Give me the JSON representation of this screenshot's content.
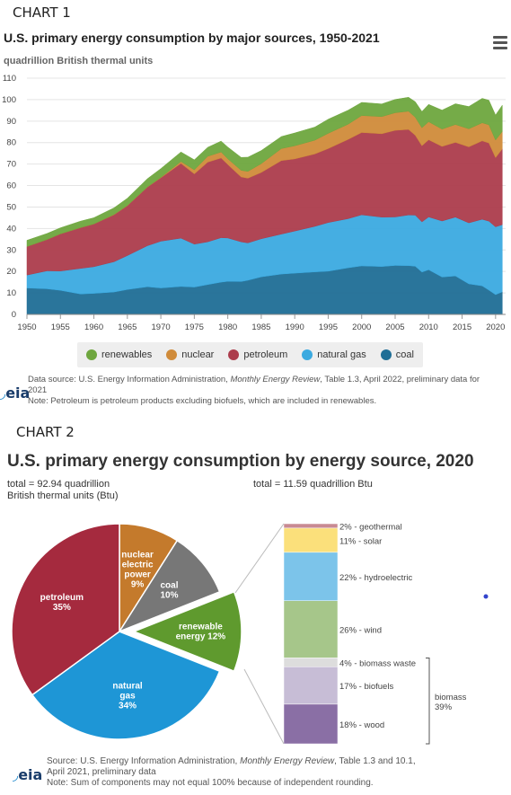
{
  "chart1": {
    "label": "CHART 1",
    "title": "U.S. primary energy consumption by major sources, 1950-2021",
    "subtitle": "quadrillion British thermal units",
    "menu_icon": "hamburger-menu-icon",
    "source_prefix": "Data source: U.S. Energy Information Administration, ",
    "source_pub": "Monthly Energy Review",
    "source_suffix": ", Table 1.3, April 2022, preliminary data for",
    "source_year": "2021",
    "note": "Note: Petroleum is petroleum products excluding biofuels, which are included in renewables.",
    "logo_text": "eia",
    "chart_data": {
      "type": "area",
      "stacked": true,
      "title": "U.S. primary energy consumption by major sources, 1950-2021",
      "ylabel": "quadrillion British thermal units",
      "ylim": [
        0,
        110
      ],
      "yticks": [
        0,
        10,
        20,
        30,
        40,
        50,
        60,
        70,
        80,
        90,
        100,
        110
      ],
      "xticks": [
        1950,
        1955,
        1960,
        1965,
        1970,
        1975,
        1980,
        1985,
        1990,
        1995,
        2000,
        2005,
        2010,
        2015,
        2020
      ],
      "grid": true,
      "legend_position": "bottom",
      "x": [
        1950,
        1953,
        1955,
        1958,
        1960,
        1963,
        1965,
        1968,
        1970,
        1973,
        1975,
        1977,
        1979,
        1980,
        1982,
        1983,
        1985,
        1988,
        1990,
        1993,
        1995,
        1998,
        2000,
        2003,
        2005,
        2007,
        2008,
        2009,
        2010,
        2012,
        2014,
        2016,
        2018,
        2019,
        2020,
        2021
      ],
      "series": [
        {
          "name": "coal",
          "color": "#1f6e96",
          "values": [
            12.3,
            11.9,
            11.2,
            9.5,
            9.8,
            10.4,
            11.6,
            12.9,
            12.3,
            13.0,
            12.7,
            13.9,
            15.0,
            15.4,
            15.3,
            15.9,
            17.5,
            18.8,
            19.2,
            19.8,
            20.1,
            21.7,
            22.6,
            22.3,
            22.8,
            22.7,
            22.4,
            19.7,
            20.8,
            17.4,
            17.9,
            14.2,
            13.3,
            11.3,
            9.2,
            10.5
          ]
        },
        {
          "name": "natural gas",
          "color": "#3baae0",
          "values": [
            6.0,
            8.4,
            9.0,
            11.9,
            12.4,
            14.1,
            15.8,
            19.1,
            21.8,
            22.5,
            20.0,
            19.9,
            20.7,
            20.2,
            18.5,
            17.4,
            17.7,
            18.6,
            19.6,
            21.2,
            22.7,
            22.9,
            23.8,
            23.0,
            22.6,
            23.6,
            23.8,
            23.4,
            24.6,
            26.1,
            27.4,
            28.4,
            31.0,
            32.1,
            31.6,
            31.3
          ]
        },
        {
          "name": "petroleum",
          "color": "#ac3c4c",
          "values": [
            13.3,
            14.6,
            17.3,
            19.0,
            19.9,
            21.9,
            23.2,
            27.3,
            29.5,
            34.8,
            32.7,
            37.1,
            37.1,
            34.2,
            30.2,
            30.1,
            30.9,
            34.2,
            33.6,
            33.7,
            34.4,
            36.9,
            38.3,
            38.8,
            40.3,
            39.8,
            37.2,
            35.4,
            35.9,
            34.7,
            34.8,
            35.4,
            36.5,
            36.4,
            32.2,
            35.3
          ]
        },
        {
          "name": "nuclear",
          "color": "#d08b3a",
          "values": [
            0,
            0,
            0,
            0,
            0,
            0.1,
            0.1,
            0.1,
            0.2,
            0.9,
            1.9,
            2.7,
            2.8,
            2.7,
            3.1,
            3.2,
            4.1,
            5.6,
            6.1,
            6.4,
            7.1,
            7.1,
            7.9,
            8.0,
            8.2,
            8.5,
            8.4,
            8.4,
            8.4,
            8.1,
            8.3,
            8.4,
            8.4,
            8.5,
            8.2,
            8.1
          ]
        },
        {
          "name": "renewables",
          "color": "#6ea63e",
          "values": [
            2.9,
            2.8,
            2.8,
            3.0,
            2.9,
            3.1,
            3.4,
            3.8,
            4.1,
            4.4,
            4.7,
            4.2,
            5.1,
            5.4,
            6.0,
            6.6,
            6.1,
            5.6,
            6.0,
            6.1,
            6.6,
            6.5,
            6.1,
            5.9,
            6.2,
            6.5,
            7.2,
            7.6,
            8.1,
            8.8,
            9.7,
            10.4,
            11.4,
            11.4,
            11.6,
            12.2
          ]
        }
      ]
    }
  },
  "chart2": {
    "label": "CHART 2",
    "title": "U.S. primary energy consumption by energy source, 2020",
    "total_left_line1": "total = 92.94 quadrillion",
    "total_left_line2": "British thermal units (Btu)",
    "total_right": "total = 11.59 quadrillion Btu",
    "source_prefix": "Source: U.S. Energy Information Administration, ",
    "source_pub": "Monthly Energy Review",
    "source_suffix": ", Table 1.3 and 10.1,",
    "source_line2": "April 2021, preliminary data",
    "note": "Note: Sum of components may not equal 100% because of independent rounding.",
    "logo_text": "eia",
    "biomass_label": "biomass",
    "biomass_pct": "39%",
    "chart_data": [
      {
        "type": "pie",
        "title": "U.S. primary energy consumption by energy source, 2020",
        "categories": [
          "petroleum",
          "nuclear electric power",
          "coal",
          "renewable energy",
          "natural gas"
        ],
        "values": [
          35,
          9,
          10,
          12,
          34
        ],
        "labels": [
          [
            "petroleum",
            "35%"
          ],
          [
            "nuclear",
            "electric",
            "power",
            "9%"
          ],
          [
            "coal",
            "10%"
          ],
          [
            "renewable",
            "energy 12%"
          ],
          [
            "natural",
            "gas",
            "34%"
          ]
        ],
        "colors": [
          "#a52a3e",
          "#c47a2c",
          "#777777",
          "#5f9a2e",
          "#1e96d6"
        ],
        "exploded": "renewable energy"
      },
      {
        "type": "bar",
        "stacked": true,
        "title": "renewable energy",
        "categories": [
          "geothermal",
          "solar",
          "hydroelectric",
          "wind",
          "biomass waste",
          "biofuels",
          "wood"
        ],
        "values": [
          2,
          11,
          22,
          26,
          4,
          17,
          18
        ],
        "labels": [
          "2% - geothermal",
          "11% - solar",
          "22% - hydroelectric",
          "26% - wind",
          "4% - biomass waste",
          "17% - biofuels",
          "18% - wood"
        ],
        "colors": [
          "#c98a93",
          "#fbe07b",
          "#7cc4ea",
          "#a6c68a",
          "#dddddd",
          "#c7bdd6",
          "#8a6fa5"
        ]
      }
    ]
  }
}
